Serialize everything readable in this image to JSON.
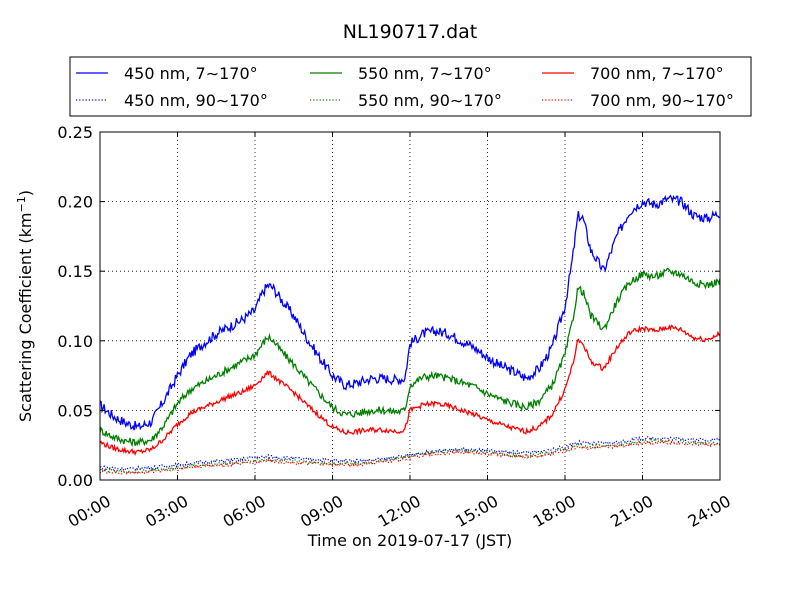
{
  "chart_data": {
    "type": "line",
    "title": "NL190717.dat",
    "xlabel": "Time on 2019-07-17 (JST)",
    "ylabel": "Scattering Coefficient (km⁻¹)",
    "ylabel_main": "Scattering Coefficient (km",
    "ylabel_sup": "−1",
    "ylabel_close": ")",
    "x_unit": "hours",
    "xlim": [
      0,
      24
    ],
    "ylim": [
      0,
      0.25
    ],
    "x_ticks": [
      0,
      3,
      6,
      9,
      12,
      15,
      18,
      21,
      24
    ],
    "x_tick_labels": [
      "00:00",
      "03:00",
      "06:00",
      "09:00",
      "12:00",
      "15:00",
      "18:00",
      "21:00",
      "24:00"
    ],
    "y_ticks": [
      0,
      0.05,
      0.1,
      0.15,
      0.2,
      0.25
    ],
    "y_tick_labels": [
      "0.00",
      "0.05",
      "0.10",
      "0.15",
      "0.20",
      "0.25"
    ],
    "grid": true,
    "legend_position": "top",
    "legend": [
      "450 nm, 7∼170°",
      "550 nm, 7∼170°",
      "700 nm, 7∼170°",
      "450 nm, 90∼170°",
      "550 nm, 90∼170°",
      "700 nm, 90∼170°"
    ],
    "series": [
      {
        "name": "450 nm, 7∼170°",
        "color": "#0000ff",
        "style": "solid",
        "x": [
          0,
          0.5,
          1,
          1.5,
          2,
          2.5,
          3,
          3.5,
          4,
          4.5,
          5,
          5.5,
          6,
          6.3,
          6.5,
          6.7,
          7,
          7.5,
          8,
          8.5,
          9,
          9.5,
          10,
          10.5,
          11,
          11.5,
          11.8,
          12,
          12.5,
          13,
          13.5,
          14,
          14.5,
          15,
          15.5,
          16,
          16.5,
          17,
          17.5,
          18,
          18.3,
          18.5,
          18.7,
          19,
          19.5,
          20,
          20.5,
          21,
          21.5,
          22,
          22.5,
          23,
          23.5,
          24
        ],
        "y": [
          0.054,
          0.046,
          0.041,
          0.038,
          0.042,
          0.058,
          0.075,
          0.09,
          0.098,
          0.105,
          0.11,
          0.115,
          0.122,
          0.135,
          0.14,
          0.138,
          0.13,
          0.118,
          0.102,
          0.088,
          0.075,
          0.068,
          0.07,
          0.073,
          0.073,
          0.072,
          0.073,
          0.098,
          0.105,
          0.107,
          0.105,
          0.1,
          0.095,
          0.088,
          0.082,
          0.078,
          0.073,
          0.08,
          0.095,
          0.125,
          0.16,
          0.19,
          0.188,
          0.165,
          0.15,
          0.175,
          0.193,
          0.2,
          0.198,
          0.202,
          0.2,
          0.19,
          0.188,
          0.192
        ]
      },
      {
        "name": "550 nm, 7∼170°",
        "color": "#008000",
        "style": "solid",
        "x": [
          0,
          0.5,
          1,
          1.5,
          2,
          2.5,
          3,
          3.5,
          4,
          4.5,
          5,
          5.5,
          6,
          6.3,
          6.5,
          6.7,
          7,
          7.5,
          8,
          8.5,
          9,
          9.5,
          10,
          10.5,
          11,
          11.5,
          11.8,
          12,
          12.5,
          13,
          13.5,
          14,
          14.5,
          15,
          15.5,
          16,
          16.5,
          17,
          17.5,
          18,
          18.3,
          18.5,
          18.7,
          19,
          19.5,
          20,
          20.5,
          21,
          21.5,
          22,
          22.5,
          23,
          23.5,
          24
        ],
        "y": [
          0.036,
          0.031,
          0.028,
          0.027,
          0.029,
          0.04,
          0.055,
          0.065,
          0.07,
          0.075,
          0.08,
          0.085,
          0.09,
          0.098,
          0.103,
          0.1,
          0.093,
          0.083,
          0.072,
          0.062,
          0.052,
          0.047,
          0.048,
          0.05,
          0.05,
          0.049,
          0.05,
          0.068,
          0.074,
          0.075,
          0.073,
          0.07,
          0.067,
          0.062,
          0.058,
          0.055,
          0.052,
          0.057,
          0.068,
          0.09,
          0.115,
          0.138,
          0.135,
          0.118,
          0.108,
          0.128,
          0.142,
          0.148,
          0.146,
          0.15,
          0.148,
          0.142,
          0.14,
          0.143
        ]
      },
      {
        "name": "700 nm, 7∼170°",
        "color": "#ff0000",
        "style": "solid",
        "x": [
          0,
          0.5,
          1,
          1.5,
          2,
          2.5,
          3,
          3.5,
          4,
          4.5,
          5,
          5.5,
          6,
          6.3,
          6.5,
          6.7,
          7,
          7.5,
          8,
          8.5,
          9,
          9.5,
          10,
          10.5,
          11,
          11.5,
          11.8,
          12,
          12.5,
          13,
          13.5,
          14,
          14.5,
          15,
          15.5,
          16,
          16.5,
          17,
          17.5,
          18,
          18.3,
          18.5,
          18.7,
          19,
          19.5,
          20,
          20.5,
          21,
          21.5,
          22,
          22.5,
          23,
          23.5,
          24
        ],
        "y": [
          0.027,
          0.023,
          0.021,
          0.02,
          0.022,
          0.03,
          0.04,
          0.048,
          0.052,
          0.056,
          0.06,
          0.063,
          0.068,
          0.074,
          0.077,
          0.075,
          0.07,
          0.063,
          0.054,
          0.046,
          0.038,
          0.034,
          0.035,
          0.036,
          0.036,
          0.035,
          0.036,
          0.05,
          0.054,
          0.055,
          0.053,
          0.05,
          0.047,
          0.043,
          0.04,
          0.037,
          0.035,
          0.038,
          0.047,
          0.065,
          0.083,
          0.1,
          0.098,
          0.085,
          0.08,
          0.095,
          0.106,
          0.109,
          0.107,
          0.11,
          0.108,
          0.102,
          0.101,
          0.105
        ]
      },
      {
        "name": "450 nm, 90∼170°",
        "color": "#0000ff",
        "style": "dotted",
        "x": [
          0,
          1,
          2,
          3,
          4,
          5,
          6,
          6.5,
          7,
          8,
          9,
          10,
          11,
          12,
          13,
          14,
          15,
          16,
          17,
          18,
          18.5,
          19,
          20,
          21,
          22,
          23,
          24
        ],
        "y": [
          0.009,
          0.008,
          0.009,
          0.011,
          0.013,
          0.014,
          0.016,
          0.017,
          0.016,
          0.015,
          0.014,
          0.014,
          0.015,
          0.018,
          0.021,
          0.022,
          0.021,
          0.02,
          0.02,
          0.024,
          0.027,
          0.026,
          0.027,
          0.03,
          0.03,
          0.029,
          0.029
        ]
      },
      {
        "name": "550 nm, 90∼170°",
        "color": "#008000",
        "style": "dotted",
        "x": [
          0,
          1,
          2,
          3,
          4,
          5,
          6,
          6.5,
          7,
          8,
          9,
          10,
          11,
          12,
          13,
          14,
          15,
          16,
          17,
          18,
          18.5,
          19,
          20,
          21,
          22,
          23,
          24
        ],
        "y": [
          0.007,
          0.006,
          0.007,
          0.009,
          0.011,
          0.012,
          0.014,
          0.015,
          0.014,
          0.013,
          0.012,
          0.012,
          0.014,
          0.017,
          0.02,
          0.021,
          0.02,
          0.018,
          0.018,
          0.022,
          0.025,
          0.024,
          0.025,
          0.028,
          0.028,
          0.027,
          0.026
        ]
      },
      {
        "name": "700 nm, 90∼170°",
        "color": "#ff0000",
        "style": "dotted",
        "x": [
          0,
          1,
          2,
          3,
          4,
          5,
          6,
          6.5,
          7,
          8,
          9,
          10,
          11,
          12,
          13,
          14,
          15,
          16,
          17,
          18,
          18.5,
          19,
          20,
          21,
          22,
          23,
          24
        ],
        "y": [
          0.006,
          0.005,
          0.006,
          0.008,
          0.01,
          0.011,
          0.013,
          0.014,
          0.013,
          0.012,
          0.011,
          0.011,
          0.013,
          0.016,
          0.019,
          0.02,
          0.019,
          0.017,
          0.017,
          0.021,
          0.024,
          0.023,
          0.024,
          0.027,
          0.027,
          0.026,
          0.025
        ]
      }
    ]
  }
}
